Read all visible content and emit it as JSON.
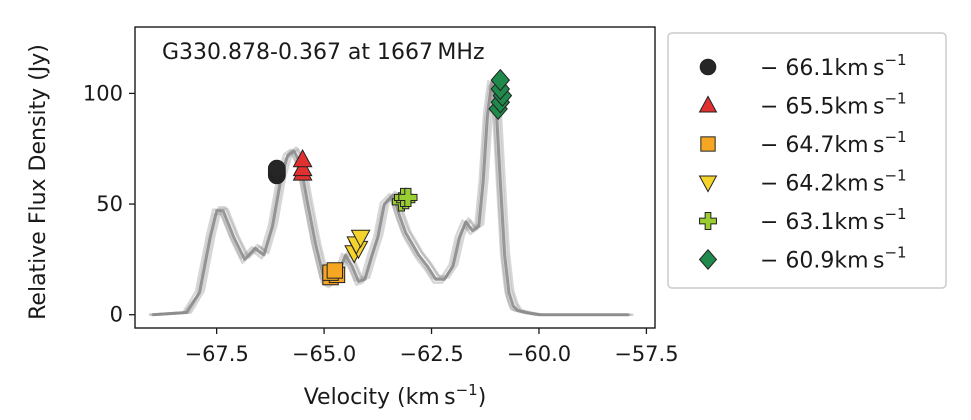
{
  "chart_data": {
    "type": "line",
    "title": "G330.878-0.367 at 1667 MHz",
    "xlabel": "Velocity (km s",
    "xlabel_sup": "−1",
    "xlabel_close": ")",
    "ylabel": "Relative Flux Density (Jy)",
    "xlim": [
      -69.4,
      -57.3
    ],
    "ylim": [
      -6,
      130
    ],
    "xticks": [
      -67.5,
      -65.0,
      -62.5,
      -60.0,
      -57.5
    ],
    "xtick_labels": [
      "−67.5",
      "−65.0",
      "−62.5",
      "−60.0",
      "−57.5"
    ],
    "yticks": [
      0,
      50,
      100
    ],
    "ytick_labels": [
      "0",
      "50",
      "100"
    ],
    "legend_position": "right, outside plot",
    "spectrum": {
      "color": "#8c8c8c",
      "x": [
        -69.0,
        -68.2,
        -67.9,
        -67.65,
        -67.5,
        -67.35,
        -67.1,
        -66.85,
        -66.6,
        -66.4,
        -66.2,
        -66.0,
        -65.85,
        -65.7,
        -65.55,
        -65.4,
        -65.2,
        -65.0,
        -64.85,
        -64.7,
        -64.6,
        -64.5,
        -64.35,
        -64.2,
        -64.05,
        -63.9,
        -63.75,
        -63.6,
        -63.4,
        -63.25,
        -63.1,
        -62.95,
        -62.8,
        -62.6,
        -62.4,
        -62.2,
        -62.0,
        -61.85,
        -61.7,
        -61.55,
        -61.4,
        -61.3,
        -61.2,
        -61.1,
        -61.0,
        -60.9,
        -60.8,
        -60.7,
        -60.6,
        -60.5,
        -60.3,
        -60.0,
        -59.5,
        -58.5,
        -57.9
      ],
      "y": [
        0,
        1,
        10,
        35,
        47,
        47,
        35,
        25,
        30,
        27,
        40,
        62,
        72,
        74,
        68,
        52,
        32,
        16,
        14,
        16,
        22,
        27,
        22,
        15,
        16,
        26,
        35,
        50,
        54,
        45,
        37,
        32,
        27,
        22,
        16,
        16,
        22,
        35,
        42,
        38,
        40,
        60,
        90,
        105,
        95,
        60,
        27,
        10,
        4,
        2,
        1,
        0,
        0,
        0,
        0
      ]
    },
    "series": [
      {
        "name": "− 66.1km s",
        "marker": "circle",
        "color": "#262626",
        "x": [
          -66.1,
          -66.1,
          -66.1,
          -66.1
        ],
        "y": [
          63,
          64,
          65,
          66
        ]
      },
      {
        "name": "− 65.5km s",
        "marker": "triangle-up",
        "color": "#e03030",
        "x": [
          -65.5,
          -65.5,
          -65.5
        ],
        "y": [
          64,
          66,
          70
        ]
      },
      {
        "name": "− 64.7km s",
        "marker": "square",
        "color": "#f5a623",
        "x": [
          -64.85,
          -64.7,
          -64.85,
          -64.75
        ],
        "y": [
          17,
          18,
          19,
          20
        ]
      },
      {
        "name": "− 64.2km s",
        "marker": "triangle-down",
        "color": "#f6d32b",
        "x": [
          -64.3,
          -64.2,
          -64.25,
          -64.15
        ],
        "y": [
          28,
          30,
          32,
          35
        ]
      },
      {
        "name": "− 63.1km s",
        "marker": "plus",
        "color": "#9acd32",
        "x": [
          -63.2,
          -63.1,
          -63.15,
          -63.05
        ],
        "y": [
          51,
          52,
          53,
          53
        ]
      },
      {
        "name": "− 60.9km s",
        "marker": "diamond",
        "color": "#1f8a4c",
        "x": [
          -60.95,
          -60.9,
          -60.85,
          -60.9,
          -60.9
        ],
        "y": [
          93,
          96,
          99,
          102,
          106
        ]
      }
    ],
    "legend_sup": "−1"
  }
}
